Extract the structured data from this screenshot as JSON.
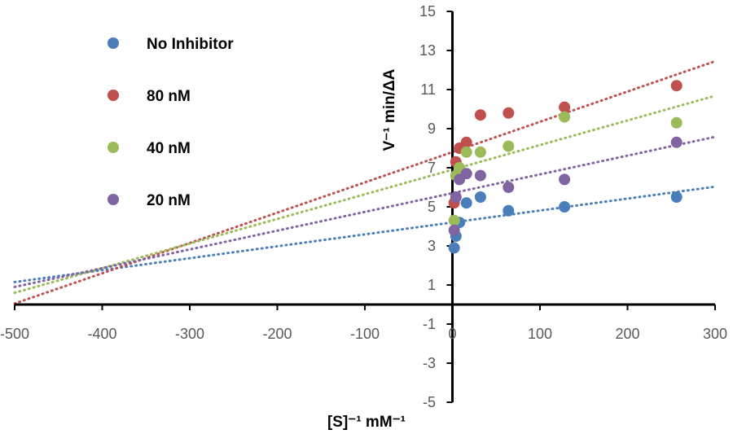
{
  "chart_data": {
    "type": "scatter",
    "title": "",
    "xlabel": "[S]⁻¹ mM⁻¹",
    "ylabel": "V⁻¹ min/ΔA",
    "xlim": [
      -500,
      300
    ],
    "ylim": [
      -5,
      15
    ],
    "x_ticks": [
      -500,
      -400,
      -300,
      -200,
      -100,
      0,
      100,
      200,
      300
    ],
    "y_ticks": [
      -5,
      -3,
      -1,
      1,
      3,
      5,
      7,
      9,
      11,
      13,
      15
    ],
    "x_tick_labels": [
      "-500",
      "-400",
      "-300",
      "-200",
      "-100",
      "0",
      "100",
      "200",
      "300"
    ],
    "y_tick_labels": [
      "-5",
      "-3",
      "-1",
      "1",
      "3",
      "5",
      "7",
      "9",
      "11",
      "13",
      "15"
    ],
    "grid": false,
    "legend_position": "top-left",
    "series": [
      {
        "name": "No Inhibitor",
        "color": "#4a7ebb",
        "points": [
          [
            2,
            2.9
          ],
          [
            4,
            3.5
          ],
          [
            8,
            4.2
          ],
          [
            16,
            5.2
          ],
          [
            32,
            5.5
          ],
          [
            64,
            4.8
          ],
          [
            128,
            5.0
          ],
          [
            256,
            5.5
          ]
        ],
        "trendline": {
          "slope": 0.0061,
          "intercept": 4.2
        }
      },
      {
        "name": "80 nM",
        "color": "#c0504d",
        "points": [
          [
            2,
            5.2
          ],
          [
            4,
            7.3
          ],
          [
            8,
            8.0
          ],
          [
            16,
            8.3
          ],
          [
            32,
            9.7
          ],
          [
            64,
            9.8
          ],
          [
            128,
            10.1
          ],
          [
            256,
            11.2
          ]
        ],
        "trendline": {
          "slope": 0.0155,
          "intercept": 7.8
        }
      },
      {
        "name": "40 nM",
        "color": "#9bbb59",
        "points": [
          [
            2,
            4.3
          ],
          [
            4,
            6.6
          ],
          [
            8,
            7.0
          ],
          [
            16,
            7.8
          ],
          [
            32,
            7.8
          ],
          [
            64,
            8.1
          ],
          [
            128,
            9.6
          ],
          [
            256,
            9.3
          ]
        ],
        "trendline": {
          "slope": 0.0126,
          "intercept": 6.9
        }
      },
      {
        "name": "20 nM",
        "color": "#8064a2",
        "points": [
          [
            2,
            3.8
          ],
          [
            4,
            5.5
          ],
          [
            8,
            6.4
          ],
          [
            16,
            6.7
          ],
          [
            32,
            6.6
          ],
          [
            64,
            6.0
          ],
          [
            128,
            6.4
          ],
          [
            256,
            8.3
          ]
        ],
        "trendline": {
          "slope": 0.0096,
          "intercept": 5.7
        }
      }
    ]
  }
}
